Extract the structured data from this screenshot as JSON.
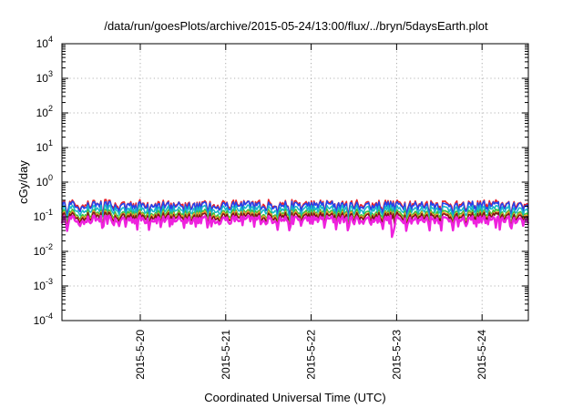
{
  "chart_data": {
    "type": "line",
    "title": "/data/run/goesPlots/archive/2015-05-24/13:00/flux/../bryn/5daysEarth.plot",
    "xlabel": "Coordinated Universal Time (UTC)",
    "ylabel": "cGy/day",
    "y_scale": "log",
    "ylim": [
      0.0001,
      10000
    ],
    "xlim": [
      "2015-05-19 02:00",
      "2015-05-24 13:00"
    ],
    "y_ticks": [
      {
        "base": "10",
        "exp": "-4"
      },
      {
        "base": "10",
        "exp": "-3"
      },
      {
        "base": "10",
        "exp": "-2"
      },
      {
        "base": "10",
        "exp": "-1"
      },
      {
        "base": "10",
        "exp": "0"
      },
      {
        "base": "10",
        "exp": "1"
      },
      {
        "base": "10",
        "exp": "2"
      },
      {
        "base": "10",
        "exp": "3"
      },
      {
        "base": "10",
        "exp": "4"
      }
    ],
    "x_ticks": [
      {
        "label": "2015-5-20",
        "x": "2015-05-20 00:00"
      },
      {
        "label": "2015-5-21",
        "x": "2015-05-21 00:00"
      },
      {
        "label": "2015-5-22",
        "x": "2015-05-22 00:00"
      },
      {
        "label": "2015-5-23",
        "x": "2015-05-23 00:00"
      },
      {
        "label": "2015-5-24",
        "x": "2015-05-24 00:00"
      }
    ],
    "grid": true,
    "legend": "none",
    "series": [
      {
        "color": "#e8202a",
        "baseline": 0.24,
        "spread": 0.12,
        "dip_depth": 0.45
      },
      {
        "color": "#2244ee",
        "baseline": 0.22,
        "spread": 0.12,
        "dip_depth": 0.45
      },
      {
        "color": "#19b7c8",
        "baseline": 0.17,
        "spread": 0.1,
        "dip_depth": 0.4
      },
      {
        "color": "#39c23a",
        "baseline": 0.13,
        "spread": 0.08,
        "dip_depth": 0.38
      },
      {
        "color": "#f29a2e",
        "baseline": 0.115,
        "spread": 0.07,
        "dip_depth": 0.35
      },
      {
        "color": "#7a1616",
        "baseline": 0.105,
        "spread": 0.06,
        "dip_depth": 0.35
      },
      {
        "color": "#ee22dd",
        "baseline": 0.085,
        "spread": 0.05,
        "dip_depth": 0.55
      }
    ]
  }
}
